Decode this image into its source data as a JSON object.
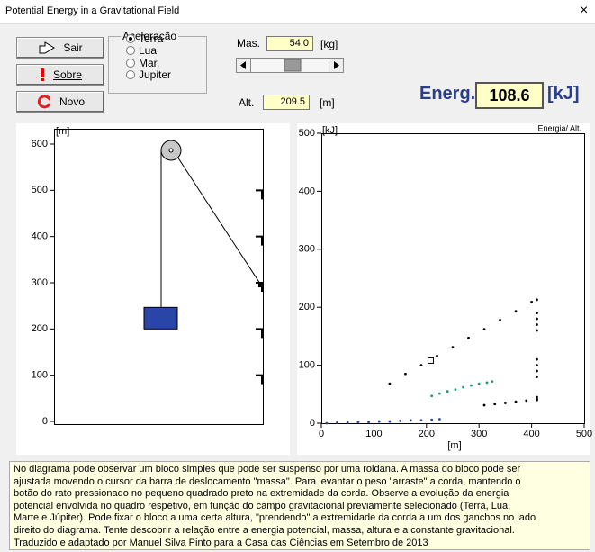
{
  "window": {
    "title": "Potential Energy in a Gravitational Field",
    "close": "×"
  },
  "buttons": [
    "Sair",
    "Sobre",
    "Novo"
  ],
  "acceleration": {
    "label": "Aceleração",
    "options": [
      "Terra",
      "Lua",
      "Mar.",
      "Jupiter"
    ],
    "selected": 0
  },
  "mass": {
    "label": "Mas.",
    "value": "54.0",
    "unit": "[kg]"
  },
  "height": {
    "label": "Alt.",
    "value": "209.5",
    "unit": "[m]"
  },
  "energy": {
    "label": "Energ.",
    "value": "108.6",
    "unit": "[kJ]"
  },
  "chart_data": [
    {
      "type": "pulley",
      "y_label": "[m]",
      "ylim": [
        0,
        600
      ],
      "yticks": [
        0,
        100,
        200,
        300,
        400,
        500,
        600
      ],
      "hooks": [
        100,
        200,
        300,
        400,
        500
      ],
      "block_height": 200,
      "rope_end_height": 295,
      "block_color": "#2a45a8"
    },
    {
      "type": "scatter",
      "title": "Energia/ Alt.",
      "x_label": "[m]",
      "y_label": "[kJ]",
      "xlim": [
        0,
        500
      ],
      "ylim": [
        0,
        500
      ],
      "xticks": [
        0,
        100,
        200,
        300,
        400,
        500
      ],
      "yticks": [
        0,
        100,
        200,
        300,
        400,
        500
      ],
      "series": [
        {
          "color": "#2a45a8",
          "x": [
            10,
            30,
            50,
            70,
            90,
            110,
            130,
            150,
            170,
            190,
            210,
            225
          ],
          "y": [
            0,
            1,
            1,
            2,
            2,
            3,
            3,
            4,
            5,
            5,
            6,
            7
          ]
        },
        {
          "color": "#1a9a7a",
          "x": [
            210,
            225,
            240,
            255,
            270,
            285,
            300,
            315,
            325
          ],
          "y": [
            47,
            51,
            55,
            58,
            62,
            65,
            68,
            70,
            72
          ]
        },
        {
          "color": "#000000",
          "x": [
            130,
            160,
            190,
            220,
            250,
            280,
            310,
            340,
            370,
            400,
            410
          ],
          "y": [
            68,
            85,
            100,
            116,
            131,
            147,
            162,
            178,
            193,
            209,
            213
          ]
        },
        {
          "color": "#000000",
          "x": [
            410,
            410,
            410,
            410,
            410,
            410,
            410,
            410,
            410,
            410
          ],
          "y": [
            190,
            180,
            170,
            160,
            110,
            100,
            90,
            80,
            45,
            40
          ]
        },
        {
          "color": "#000000",
          "x": [
            310,
            330,
            350,
            370,
            390,
            410
          ],
          "y": [
            31,
            33,
            35,
            37,
            39,
            42
          ]
        }
      ],
      "marker": {
        "x": 208,
        "y": 108
      }
    }
  ],
  "description": [
    "No diagrama pode observar um bloco simples que pode ser suspenso por uma roldana.  A massa do bloco pode ser",
    "ajustada movendo o cursor da barra de deslocamento \"massa\".  Para levantar o peso \"arraste\" a corda, mantendo o",
    "botão do rato pressionado no pequeno quadrado preto na extremidade da corda.  Observe a evolução da energia",
    "potencial envolvida no quadro respetivo, em função do campo gravitacional previamente selecionado (Terra, Lua,",
    "Marte e Júpiter).  Pode fixar o bloco a uma certa altura, \"prendendo\" a extremidade da corda a um dos ganchos no lado",
    "direito do diagrama.  Tente descobrir a relação entre a energia potencial, massa, altura e a constante gravitacional.",
    "Traduzido e adaptado por Manuel Silva Pinto  para a Casa das Ciências em Setembro de 2013"
  ]
}
